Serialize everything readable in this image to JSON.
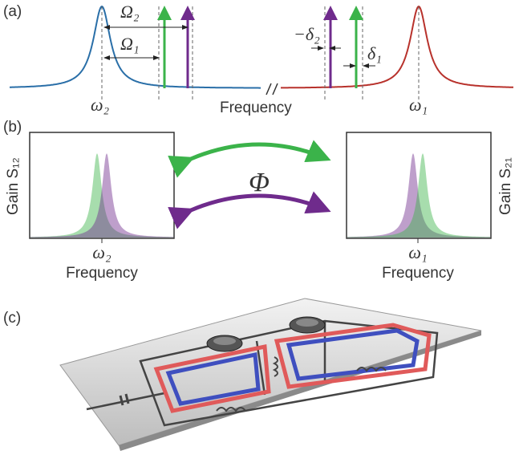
{
  "panel_a": {
    "label": "(a)",
    "omega_2_gap": "Ω₂",
    "omega_1_gap": "Ω₁",
    "delta_2": "−δ₂",
    "delta_1": "δ₁",
    "left_resonance": "ω₂",
    "right_resonance": "ω₁",
    "axis_label": "Frequency"
  },
  "panel_b": {
    "label": "(b)",
    "left_gain": "Gain S₁₂",
    "phase": "Φ",
    "right_gain": "Gain S₂₁",
    "left_resonance": "ω₂",
    "left_axis_label": "Frequency",
    "right_resonance": "ω₁",
    "right_axis_label": "Frequency"
  },
  "panel_c": {
    "label": "(c)"
  }
}
